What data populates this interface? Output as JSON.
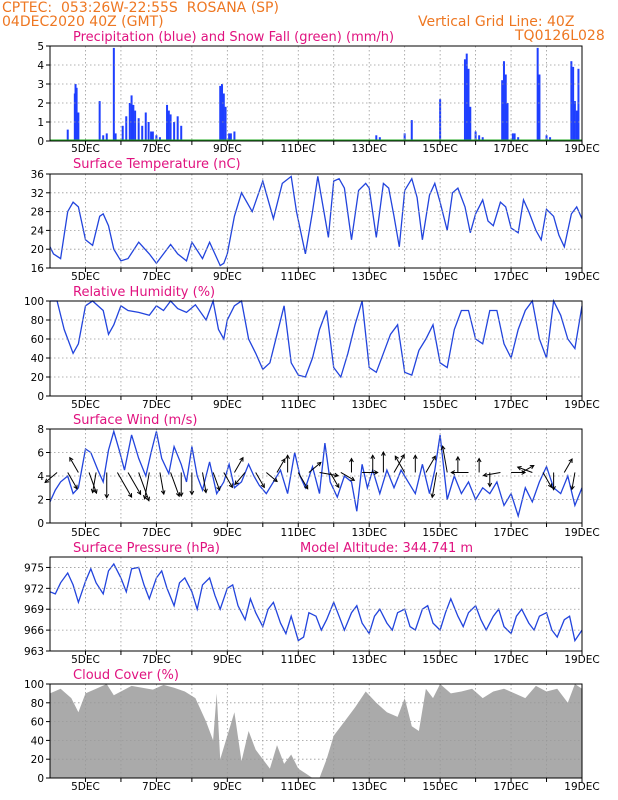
{
  "header": {
    "line1_left": "CPTEC:  053:26W-22:55S  ROSANA (SP)",
    "line2_left": "04DEC2020 40Z (GMT)",
    "line2_right": "Vertical Grid Line: 40Z",
    "line3_right": "TQ0126L028"
  },
  "colors": {
    "header": "#ee7722",
    "title": "#e0127f",
    "precip": "#1f3fff",
    "snow": "#22aa22",
    "line": "#2244dd",
    "cloud": "#aaaaaa",
    "arrow": "#000000"
  },
  "date_labels": [
    "5DEC",
    "7DEC",
    "9DEC",
    "11DEC",
    "13DEC",
    "15DEC",
    "17DEC",
    "19DEC"
  ],
  "date_days": [
    5,
    7,
    9,
    11,
    13,
    15,
    17,
    19
  ],
  "x_range_days": [
    4.0,
    19.0
  ],
  "chart_data": [
    {
      "type": "bar",
      "title": "Precipitation (blue) and Snow Fall (green) (mm/h)",
      "ylim": [
        0,
        5
      ],
      "yticks": [
        0,
        1,
        2,
        3,
        4,
        5
      ],
      "grid": true,
      "series": [
        {
          "name": "Precipitation",
          "points": [
            [
              4.5,
              0.6
            ],
            [
              4.7,
              2.5
            ],
            [
              4.72,
              3.0
            ],
            [
              4.75,
              2.8
            ],
            [
              4.8,
              1.5
            ],
            [
              5.4,
              2.1
            ],
            [
              5.5,
              0.3
            ],
            [
              5.6,
              0.4
            ],
            [
              5.8,
              4.9
            ],
            [
              5.85,
              0.4
            ],
            [
              6.05,
              0.8
            ],
            [
              6.15,
              1.3
            ],
            [
              6.25,
              2.0
            ],
            [
              6.3,
              2.4
            ],
            [
              6.35,
              1.9
            ],
            [
              6.4,
              1.6
            ],
            [
              6.5,
              1.2
            ],
            [
              6.6,
              0.8
            ],
            [
              6.7,
              1.5
            ],
            [
              6.78,
              1.0
            ],
            [
              6.85,
              0.5
            ],
            [
              6.9,
              0.5
            ],
            [
              7.0,
              0.3
            ],
            [
              7.1,
              0.2
            ],
            [
              7.3,
              1.9
            ],
            [
              7.35,
              1.6
            ],
            [
              7.4,
              1.4
            ],
            [
              7.5,
              1.0
            ],
            [
              7.6,
              1.3
            ],
            [
              7.7,
              0.8
            ],
            [
              8.8,
              2.9
            ],
            [
              8.85,
              3.0
            ],
            [
              8.9,
              2.5
            ],
            [
              8.95,
              1.8
            ],
            [
              9.05,
              0.4
            ],
            [
              9.1,
              0.4
            ],
            [
              9.2,
              0.5
            ],
            [
              13.2,
              0.3
            ],
            [
              13.3,
              0.2
            ],
            [
              14.0,
              0.4
            ],
            [
              14.2,
              1.1
            ],
            [
              15.0,
              2.2
            ],
            [
              15.7,
              4.3
            ],
            [
              15.75,
              4.6
            ],
            [
              15.8,
              3.8
            ],
            [
              15.85,
              1.8
            ],
            [
              16.0,
              0.5
            ],
            [
              16.1,
              0.3
            ],
            [
              16.2,
              0.2
            ],
            [
              16.75,
              3.2
            ],
            [
              16.8,
              4.2
            ],
            [
              16.85,
              3.5
            ],
            [
              16.9,
              2.0
            ],
            [
              17.05,
              0.4
            ],
            [
              17.1,
              0.4
            ],
            [
              17.2,
              0.2
            ],
            [
              17.75,
              4.9
            ],
            [
              17.8,
              3.5
            ],
            [
              18.0,
              0.3
            ],
            [
              18.1,
              0.2
            ],
            [
              18.7,
              4.2
            ],
            [
              18.75,
              3.9
            ],
            [
              18.8,
              2.1
            ],
            [
              18.85,
              1.6
            ],
            [
              18.9,
              3.8
            ]
          ]
        },
        {
          "name": "Snow Fall",
          "points": []
        }
      ]
    },
    {
      "type": "line",
      "title": "Surface Temperature (nC)",
      "ylim": [
        16,
        36
      ],
      "yticks": [
        16,
        20,
        24,
        28,
        32,
        36
      ],
      "grid": true,
      "x": [
        4.0,
        4.1,
        4.3,
        4.5,
        4.65,
        4.8,
        5.0,
        5.2,
        5.4,
        5.5,
        5.65,
        5.8,
        6.0,
        6.2,
        6.5,
        6.8,
        7.0,
        7.2,
        7.4,
        7.6,
        7.85,
        8.0,
        8.3,
        8.5,
        8.65,
        8.8,
        8.9,
        9.0,
        9.2,
        9.4,
        9.7,
        10.0,
        10.3,
        10.55,
        10.8,
        10.95,
        11.2,
        11.4,
        11.55,
        11.7,
        11.85,
        12.0,
        12.15,
        12.3,
        12.5,
        12.7,
        12.9,
        13.0,
        13.2,
        13.4,
        13.55,
        13.7,
        13.85,
        14.0,
        14.2,
        14.35,
        14.5,
        14.7,
        14.85,
        15.0,
        15.2,
        15.35,
        15.5,
        15.7,
        15.85,
        16.0,
        16.2,
        16.35,
        16.5,
        16.7,
        16.85,
        17.0,
        17.2,
        17.35,
        17.5,
        17.7,
        17.85,
        18.0,
        18.2,
        18.35,
        18.5,
        18.7,
        18.85,
        19.0
      ],
      "values": [
        20.5,
        19.0,
        18.0,
        28.0,
        30.0,
        29.0,
        22.0,
        20.8,
        27.0,
        27.5,
        25.0,
        20.0,
        17.5,
        18.0,
        21.5,
        19.0,
        17.0,
        19.0,
        21.0,
        19.0,
        17.5,
        21.5,
        18.0,
        21.5,
        19.0,
        16.5,
        17.0,
        19.0,
        27.0,
        32.0,
        28.0,
        34.5,
        26.5,
        34.0,
        35.5,
        28.0,
        19.0,
        28.0,
        35.5,
        29.0,
        22.5,
        34.5,
        35.0,
        33.0,
        22.0,
        32.5,
        34.0,
        33.0,
        22.5,
        34.0,
        33.0,
        27.0,
        20.5,
        32.5,
        35.0,
        31.0,
        22.0,
        31.5,
        34.0,
        30.0,
        24.0,
        32.0,
        33.0,
        29.0,
        23.5,
        27.5,
        30.5,
        26.0,
        25.0,
        30.0,
        29.0,
        24.5,
        23.5,
        30.5,
        28.0,
        24.0,
        22.0,
        28.5,
        27.0,
        23.0,
        20.5,
        27.5,
        29.0,
        26.5
      ]
    },
    {
      "type": "line",
      "title": "Relative Humidity (%)",
      "ylim": [
        0,
        100
      ],
      "yticks": [
        0,
        20,
        40,
        60,
        80,
        100
      ],
      "grid": true,
      "x": [
        4.0,
        4.2,
        4.4,
        4.65,
        4.8,
        5.0,
        5.2,
        5.5,
        5.65,
        5.8,
        6.0,
        6.2,
        6.5,
        6.8,
        7.0,
        7.2,
        7.4,
        7.6,
        7.85,
        8.1,
        8.4,
        8.6,
        8.75,
        8.9,
        9.0,
        9.2,
        9.4,
        9.6,
        9.8,
        10.0,
        10.2,
        10.4,
        10.6,
        10.8,
        11.0,
        11.2,
        11.4,
        11.6,
        11.8,
        12.0,
        12.2,
        12.4,
        12.6,
        12.8,
        13.0,
        13.2,
        13.4,
        13.6,
        13.8,
        14.0,
        14.2,
        14.4,
        14.6,
        14.8,
        15.0,
        15.2,
        15.4,
        15.6,
        15.8,
        16.0,
        16.2,
        16.4,
        16.6,
        16.8,
        17.0,
        17.2,
        17.4,
        17.6,
        17.8,
        18.0,
        18.2,
        18.4,
        18.6,
        18.8,
        19.0
      ],
      "values": [
        100,
        100,
        70,
        45,
        55,
        95,
        100,
        90,
        65,
        75,
        95,
        90,
        88,
        85,
        95,
        90,
        100,
        92,
        88,
        96,
        80,
        100,
        70,
        60,
        80,
        95,
        100,
        60,
        45,
        28,
        35,
        65,
        95,
        35,
        22,
        20,
        40,
        70,
        90,
        30,
        20,
        45,
        75,
        100,
        30,
        25,
        45,
        65,
        75,
        25,
        22,
        48,
        60,
        75,
        35,
        30,
        70,
        90,
        90,
        60,
        55,
        90,
        90,
        55,
        40,
        70,
        90,
        100,
        60,
        40,
        100,
        85,
        60,
        50,
        95
      ]
    },
    {
      "type": "line",
      "title": "Surface Wind (m/s)",
      "ylim": [
        0,
        8
      ],
      "yticks": [
        0,
        2,
        4,
        6,
        8
      ],
      "grid": true,
      "x": [
        4.0,
        4.15,
        4.3,
        4.5,
        4.65,
        4.8,
        5.0,
        5.15,
        5.35,
        5.5,
        5.65,
        5.8,
        5.95,
        6.1,
        6.3,
        6.5,
        6.7,
        6.85,
        7.0,
        7.15,
        7.35,
        7.5,
        7.7,
        7.85,
        8.0,
        8.15,
        8.3,
        8.5,
        8.7,
        8.9,
        9.05,
        9.2,
        9.4,
        9.6,
        9.75,
        9.9,
        10.1,
        10.3,
        10.5,
        10.7,
        10.9,
        11.05,
        11.2,
        11.4,
        11.6,
        11.75,
        11.9,
        12.1,
        12.3,
        12.5,
        12.65,
        12.8,
        12.95,
        13.1,
        13.3,
        13.5,
        13.7,
        13.9,
        14.1,
        14.3,
        14.5,
        14.7,
        14.85,
        15.0,
        15.2,
        15.4,
        15.6,
        15.8,
        16.0,
        16.2,
        16.4,
        16.6,
        16.8,
        17.0,
        17.2,
        17.4,
        17.6,
        17.8,
        18.0,
        18.2,
        18.4,
        18.6,
        18.8,
        19.0
      ],
      "values": [
        1.8,
        2.8,
        3.5,
        4.0,
        2.5,
        3.0,
        6.3,
        6.0,
        4.5,
        3.5,
        6.2,
        7.8,
        6.2,
        4.5,
        7.5,
        5.5,
        4.0,
        6.0,
        7.8,
        5.5,
        4.2,
        6.5,
        5.0,
        3.5,
        6.5,
        4.0,
        2.8,
        5.2,
        2.5,
        3.5,
        5.0,
        3.0,
        3.5,
        5.0,
        4.0,
        3.2,
        2.5,
        3.5,
        4.5,
        2.5,
        6.0,
        4.0,
        3.0,
        4.8,
        2.5,
        6.8,
        3.5,
        2.2,
        4.0,
        3.5,
        1.0,
        5.0,
        3.0,
        4.5,
        2.5,
        4.5,
        3.0,
        4.5,
        3.5,
        2.5,
        5.0,
        2.5,
        4.5,
        7.5,
        2.0,
        4.0,
        2.5,
        3.5,
        2.0,
        3.0,
        2.5,
        3.5,
        1.5,
        2.5,
        0.6,
        3.0,
        1.8,
        3.5,
        4.8,
        3.0,
        2.5,
        4.0,
        1.5,
        3.0
      ]
    },
    {
      "type": "line",
      "title": "Surface Pressure (hPa)",
      "subtitle": "Model Altitude: 344.741 m",
      "ylim": [
        963,
        976.5
      ],
      "yticks": [
        963,
        966,
        969,
        972,
        975
      ],
      "grid": true,
      "x": [
        4.0,
        4.15,
        4.3,
        4.5,
        4.65,
        4.8,
        5.0,
        5.15,
        5.3,
        5.5,
        5.65,
        5.8,
        6.0,
        6.15,
        6.3,
        6.5,
        6.65,
        6.8,
        7.0,
        7.15,
        7.3,
        7.5,
        7.65,
        7.8,
        8.0,
        8.15,
        8.3,
        8.5,
        8.65,
        8.8,
        9.0,
        9.15,
        9.3,
        9.5,
        9.65,
        9.8,
        10.0,
        10.15,
        10.3,
        10.5,
        10.65,
        10.8,
        11.0,
        11.15,
        11.3,
        11.5,
        11.65,
        11.8,
        12.0,
        12.15,
        12.3,
        12.5,
        12.65,
        12.8,
        13.0,
        13.15,
        13.3,
        13.5,
        13.65,
        13.8,
        14.0,
        14.15,
        14.3,
        14.5,
        14.65,
        14.8,
        15.0,
        15.15,
        15.3,
        15.5,
        15.65,
        15.8,
        16.0,
        16.15,
        16.3,
        16.5,
        16.65,
        16.8,
        17.0,
        17.15,
        17.3,
        17.5,
        17.65,
        17.8,
        18.0,
        18.15,
        18.3,
        18.5,
        18.65,
        18.8,
        19.0
      ],
      "values": [
        971.5,
        971.2,
        972.8,
        974.2,
        972.5,
        970.0,
        973.0,
        974.8,
        972.8,
        971.2,
        974.5,
        975.5,
        973.5,
        971.5,
        974.8,
        975.0,
        972.5,
        970.5,
        973.5,
        974.5,
        972.0,
        969.5,
        972.8,
        973.5,
        971.5,
        969.0,
        972.5,
        973.5,
        971.0,
        969.0,
        972.0,
        972.5,
        969.5,
        967.5,
        970.5,
        968.5,
        966.5,
        969.0,
        970.0,
        967.0,
        965.5,
        968.0,
        964.5,
        965.0,
        968.5,
        968.0,
        966.0,
        967.5,
        970.0,
        968.0,
        966.0,
        968.5,
        969.5,
        967.0,
        965.5,
        968.0,
        969.0,
        967.0,
        966.0,
        968.5,
        969.0,
        966.5,
        966.0,
        969.0,
        969.5,
        967.0,
        966.0,
        968.5,
        970.5,
        968.0,
        966.5,
        968.5,
        969.5,
        967.5,
        966.0,
        968.0,
        969.0,
        966.5,
        965.5,
        968.0,
        969.0,
        967.0,
        966.0,
        968.0,
        968.5,
        966.0,
        965.0,
        967.5,
        968.0,
        964.5,
        966.0
      ]
    },
    {
      "type": "area",
      "title": "Cloud Cover (%)",
      "ylim": [
        0,
        100
      ],
      "yticks": [
        0,
        20,
        40,
        60,
        80,
        100
      ],
      "grid": true,
      "x": [
        4.0,
        4.3,
        4.6,
        4.8,
        5.0,
        5.3,
        5.6,
        5.8,
        6.0,
        6.3,
        6.6,
        6.9,
        7.2,
        7.5,
        7.8,
        8.1,
        8.4,
        8.6,
        8.7,
        8.8,
        9.0,
        9.2,
        9.4,
        9.6,
        9.8,
        10.0,
        10.2,
        10.4,
        10.6,
        10.8,
        11.0,
        11.2,
        11.4,
        11.6,
        11.8,
        12.0,
        12.3,
        12.6,
        12.9,
        13.2,
        13.5,
        13.8,
        14.0,
        14.2,
        14.4,
        14.6,
        14.8,
        15.0,
        15.3,
        15.6,
        15.9,
        16.2,
        16.5,
        16.8,
        17.1,
        17.4,
        17.7,
        18.0,
        18.3,
        18.6,
        18.8,
        19.0
      ],
      "values": [
        90,
        95,
        85,
        70,
        90,
        95,
        100,
        88,
        92,
        98,
        96,
        94,
        99,
        96,
        92,
        85,
        60,
        40,
        90,
        20,
        45,
        70,
        18,
        50,
        30,
        20,
        10,
        35,
        15,
        25,
        10,
        5,
        0,
        0,
        20,
        45,
        60,
        75,
        92,
        80,
        70,
        65,
        85,
        55,
        50,
        95,
        85,
        100,
        90,
        92,
        95,
        85,
        92,
        95,
        90,
        85,
        98,
        92,
        95,
        80,
        100,
        95
      ]
    }
  ],
  "wind_arrows": {
    "x": [
      4.2,
      4.5,
      4.8,
      5.1,
      5.3,
      5.6,
      5.9,
      6.2,
      6.5,
      6.8,
      7.1,
      7.4,
      7.7,
      8.0,
      8.3,
      8.6,
      8.9,
      9.2,
      9.5,
      9.8,
      10.1,
      10.4,
      10.7,
      11.0,
      11.3,
      11.6,
      11.9,
      12.2,
      12.5,
      12.8,
      13.1,
      13.4,
      13.7,
      14.0,
      14.3,
      14.6,
      14.9,
      15.2,
      15.5,
      15.8,
      16.1,
      16.4,
      16.7,
      17.0,
      17.3,
      17.6,
      17.9,
      18.2,
      18.5,
      18.8
    ],
    "dir": [
      220,
      300,
      120,
      290,
      260,
      270,
      300,
      300,
      290,
      260,
      280,
      290,
      270,
      270,
      280,
      290,
      300,
      60,
      230,
      300,
      320,
      60,
      90,
      300,
      40,
      350,
      300,
      330,
      90,
      0,
      90,
      90,
      60,
      120,
      90,
      60,
      260,
      100,
      90,
      180,
      90,
      270,
      190,
      0,
      30,
      160,
      300,
      270,
      60,
      260
    ],
    "speed": [
      3.0,
      4.0,
      3.5,
      5.0,
      4.5,
      6.0,
      7.0,
      6.0,
      7.5,
      6.5,
      5.0,
      6.0,
      5.5,
      5.0,
      4.5,
      4.0,
      3.5,
      3.5,
      3.0,
      3.5,
      2.5,
      3.0,
      3.5,
      4.0,
      3.0,
      4.0,
      3.5,
      3.0,
      2.5,
      3.0,
      3.5,
      4.5,
      4.5,
      4.0,
      3.5,
      4.0,
      6.0,
      6.5,
      3.0,
      3.5,
      2.5,
      2.5,
      3.5,
      2.5,
      2.5,
      3.0,
      3.5,
      3.5,
      3.0,
      3.5
    ]
  }
}
